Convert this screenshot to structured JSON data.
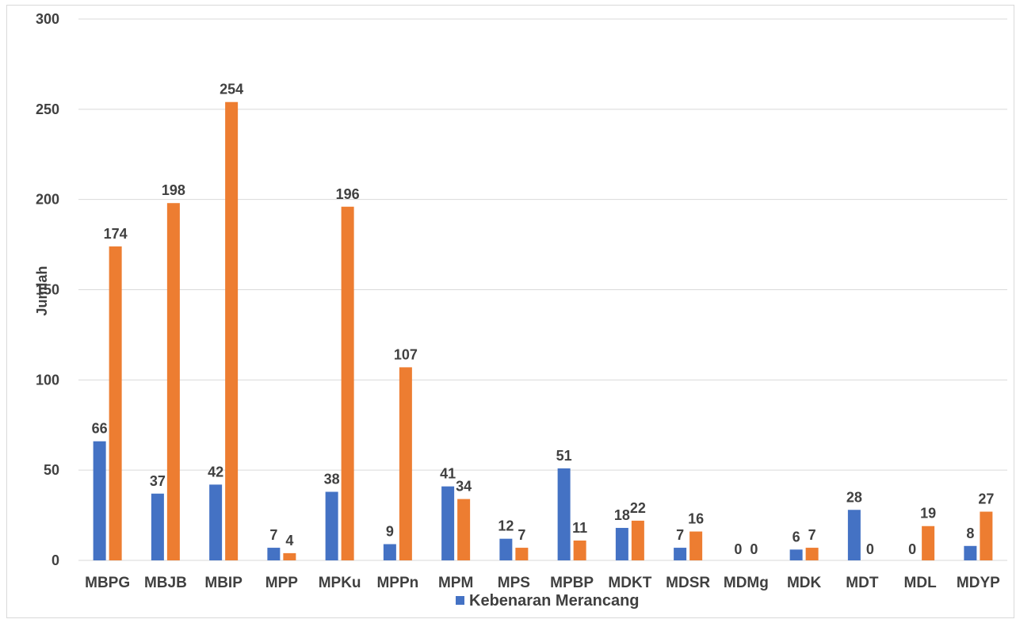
{
  "chart_data": {
    "type": "bar",
    "ylabel": "Jumlah",
    "xlabel": "",
    "ylim": [
      0,
      300
    ],
    "yticks": [
      0,
      50,
      100,
      150,
      200,
      250,
      300
    ],
    "grid": "horizontal",
    "legend_position": "bottom",
    "categories": [
      "MBPG",
      "MBJB",
      "MBIP",
      "MPP",
      "MPKu",
      "MPPn",
      "MPM",
      "MPS",
      "MPBP",
      "MDKT",
      "MDSR",
      "MDMg",
      "MDK",
      "MDT",
      "MDL",
      "MDYP"
    ],
    "series": [
      {
        "name": "Kebenaran Merancang",
        "color": "#4472c4",
        "values": [
          66,
          37,
          42,
          7,
          38,
          9,
          41,
          12,
          51,
          18,
          7,
          0,
          6,
          28,
          0,
          8
        ],
        "show_label": [
          true,
          true,
          true,
          true,
          true,
          true,
          true,
          true,
          true,
          true,
          true,
          true,
          true,
          true,
          true,
          true
        ]
      },
      {
        "color": "#ed7d31",
        "values": [
          174,
          198,
          254,
          4,
          196,
          107,
          34,
          7,
          11,
          22,
          16,
          0,
          7,
          0,
          19,
          27
        ],
        "show_label": [
          true,
          true,
          true,
          true,
          true,
          true,
          true,
          true,
          true,
          true,
          true,
          true,
          true,
          true,
          true,
          true
        ]
      }
    ]
  }
}
